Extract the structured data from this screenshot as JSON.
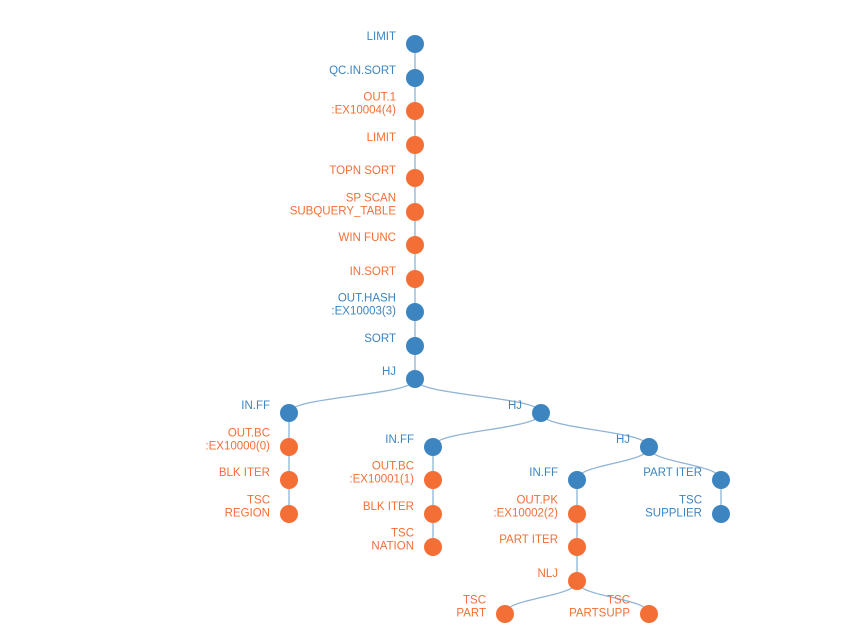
{
  "colors": {
    "blue": "#3d85c0",
    "orange": "#f46f35",
    "edge": "#8fb4d6"
  },
  "nodes": [
    {
      "id": "n1",
      "lines": [
        "LIMIT"
      ],
      "color": "blue",
      "parent": null
    },
    {
      "id": "n2",
      "lines": [
        "QC.IN.SORT"
      ],
      "color": "blue",
      "parent": "n1"
    },
    {
      "id": "n3",
      "lines": [
        "OUT.1",
        ":EX10004(4)"
      ],
      "color": "orange",
      "parent": "n2"
    },
    {
      "id": "n4",
      "lines": [
        "LIMIT"
      ],
      "color": "orange",
      "parent": "n3"
    },
    {
      "id": "n5",
      "lines": [
        "TOPN SORT"
      ],
      "color": "orange",
      "parent": "n4"
    },
    {
      "id": "n6",
      "lines": [
        "SP SCAN",
        "SUBQUERY_TABLE"
      ],
      "color": "orange",
      "parent": "n5"
    },
    {
      "id": "n7",
      "lines": [
        "WIN FUNC"
      ],
      "color": "orange",
      "parent": "n6"
    },
    {
      "id": "n8",
      "lines": [
        "IN.SORT"
      ],
      "color": "orange",
      "parent": "n7"
    },
    {
      "id": "n9",
      "lines": [
        "OUT.HASH",
        ":EX10003(3)"
      ],
      "color": "blue",
      "parent": "n8"
    },
    {
      "id": "n10",
      "lines": [
        "SORT"
      ],
      "color": "blue",
      "parent": "n9"
    },
    {
      "id": "n11",
      "lines": [
        "HJ"
      ],
      "color": "blue",
      "parent": "n10"
    },
    {
      "id": "n12",
      "lines": [
        "IN.FF"
      ],
      "color": "blue",
      "parent": "n11"
    },
    {
      "id": "n13",
      "lines": [
        "OUT.BC",
        ":EX10000(0)"
      ],
      "color": "orange",
      "parent": "n12"
    },
    {
      "id": "n14",
      "lines": [
        "BLK ITER"
      ],
      "color": "orange",
      "parent": "n13"
    },
    {
      "id": "n15",
      "lines": [
        "TSC",
        "REGION"
      ],
      "color": "orange",
      "parent": "n14"
    },
    {
      "id": "n16",
      "lines": [
        "HJ"
      ],
      "color": "blue",
      "parent": "n11"
    },
    {
      "id": "n17",
      "lines": [
        "IN.FF"
      ],
      "color": "blue",
      "parent": "n16"
    },
    {
      "id": "n18",
      "lines": [
        "OUT.BC",
        ":EX10001(1)"
      ],
      "color": "orange",
      "parent": "n17"
    },
    {
      "id": "n19",
      "lines": [
        "BLK ITER"
      ],
      "color": "orange",
      "parent": "n18"
    },
    {
      "id": "n20",
      "lines": [
        "TSC",
        "NATION"
      ],
      "color": "orange",
      "parent": "n19"
    },
    {
      "id": "n21",
      "lines": [
        "HJ"
      ],
      "color": "blue",
      "parent": "n16"
    },
    {
      "id": "n22",
      "lines": [
        "IN.FF"
      ],
      "color": "blue",
      "parent": "n21"
    },
    {
      "id": "n23",
      "lines": [
        "OUT.PK",
        ":EX10002(2)"
      ],
      "color": "orange",
      "parent": "n22"
    },
    {
      "id": "n24",
      "lines": [
        "PART ITER"
      ],
      "color": "orange",
      "parent": "n23"
    },
    {
      "id": "n25",
      "lines": [
        "NLJ"
      ],
      "color": "orange",
      "parent": "n24"
    },
    {
      "id": "n26",
      "lines": [
        "TSC",
        "PART"
      ],
      "color": "orange",
      "parent": "n25"
    },
    {
      "id": "n27",
      "lines": [
        "TSC",
        "PARTSUPP"
      ],
      "color": "orange",
      "parent": "n25"
    },
    {
      "id": "n28",
      "lines": [
        "PART ITER"
      ],
      "color": "blue",
      "parent": "n21"
    },
    {
      "id": "n29",
      "lines": [
        "TSC",
        "SUPPLIER"
      ],
      "color": "blue",
      "parent": "n28"
    }
  ]
}
